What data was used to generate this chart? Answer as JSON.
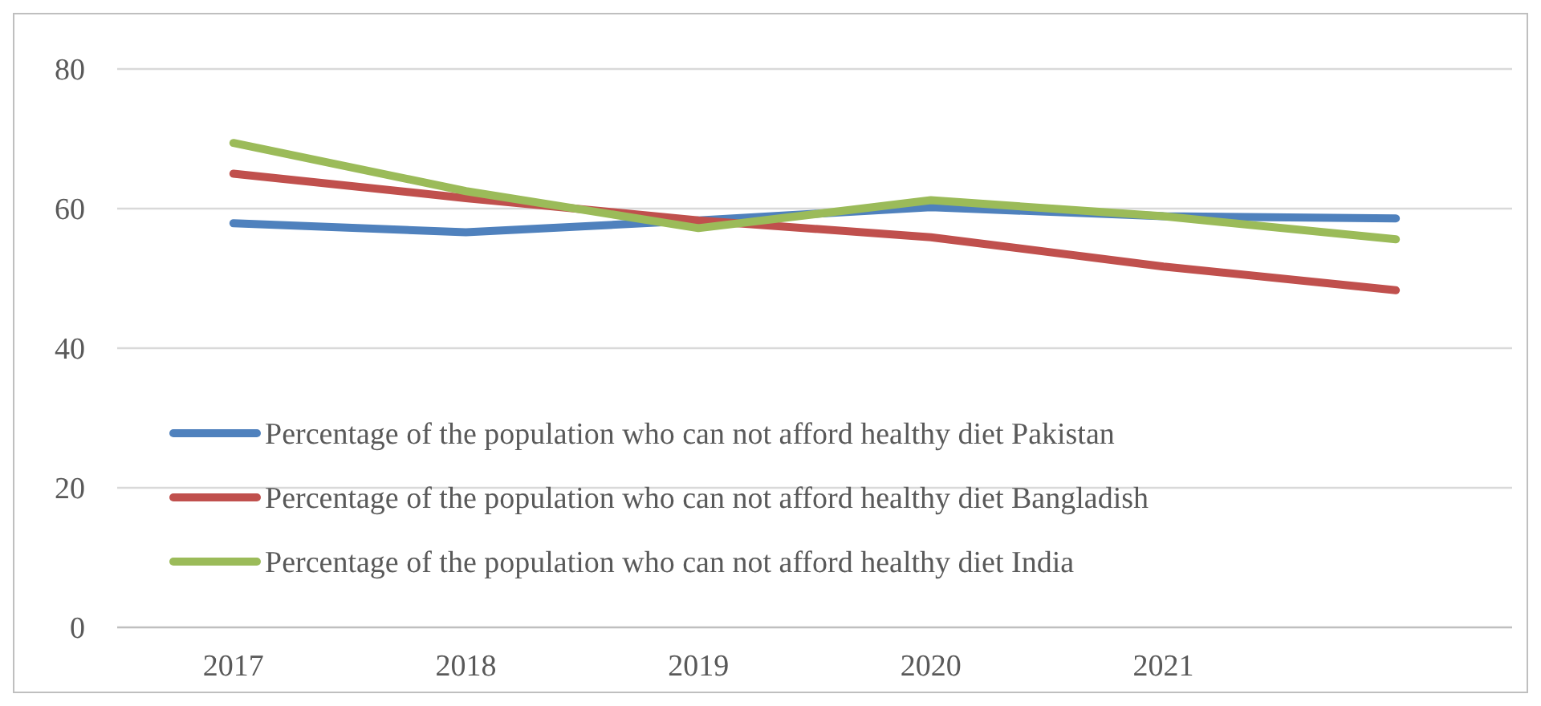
{
  "chart_data": {
    "type": "line",
    "categories": [
      "2017",
      "2018",
      "2019",
      "2020",
      "2021",
      null
    ],
    "series": [
      {
        "name": "Percentage of the population who can not afford healthy diet Pakistan",
        "color": "#4f81bd",
        "values": [
          57.9,
          56.6,
          58.3,
          60.2,
          58.9,
          58.6
        ]
      },
      {
        "name": "Percentage of the population who can not afford healthy diet Bangladish",
        "color": "#c0504d",
        "values": [
          65.0,
          61.5,
          58.3,
          55.9,
          51.7,
          48.3
        ]
      },
      {
        "name": "Percentage of the population who can not afford healthy diet India",
        "color": "#9bbb59",
        "values": [
          69.4,
          62.5,
          57.2,
          61.2,
          58.9,
          55.6
        ]
      }
    ],
    "ylim": [
      0,
      80
    ],
    "yticks": [
      0,
      20,
      40,
      60,
      80
    ],
    "grid": "y",
    "legend": "bottom left",
    "marker": "none",
    "line_style": "solid"
  }
}
